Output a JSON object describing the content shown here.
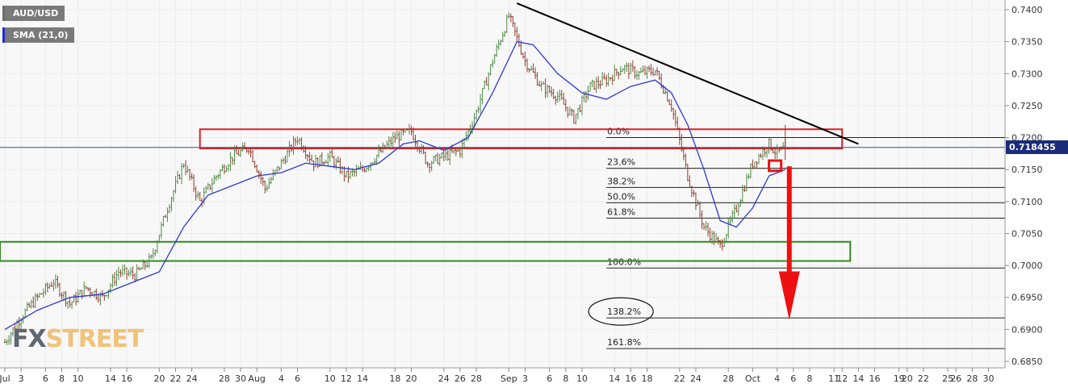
{
  "legend": {
    "symbol": "AUD/USD",
    "indicator": "SMA (21,0)"
  },
  "watermark": {
    "fx": "FX",
    "street": "STREET"
  },
  "current_price": "0.718455",
  "colors": {
    "candle": "#8f3f30",
    "candle_up": "#4f8a46",
    "sma": "#2a38d6",
    "trendline": "#000000",
    "resistance_zone": "#e02020",
    "support_zone": "#2f8a1f",
    "arrow": "#ee1010",
    "fib_lines": "#222222",
    "price_tag": "#1a2c7a",
    "background": "#f8f8f8"
  },
  "chart_data": {
    "type": "candlestick",
    "title": "",
    "y_axis": {
      "position": "right",
      "range": [
        0.684,
        0.742
      ],
      "ticks": [
        "0.7400",
        "0.7350",
        "0.7300",
        "0.7250",
        "0.7200",
        "0.7150",
        "0.7100",
        "0.7050",
        "0.7000",
        "0.6950",
        "0.6900",
        "0.6850"
      ]
    },
    "x_axis": {
      "ticks": [
        {
          "label": "Jul",
          "day": 0
        },
        {
          "label": "3",
          "day": 2
        },
        {
          "label": "6",
          "day": 5
        },
        {
          "label": "8",
          "day": 7
        },
        {
          "label": "10",
          "day": 9
        },
        {
          "label": "14",
          "day": 13
        },
        {
          "label": "16",
          "day": 15
        },
        {
          "label": "20",
          "day": 19
        },
        {
          "label": "22",
          "day": 21
        },
        {
          "label": "24",
          "day": 23
        },
        {
          "label": "28",
          "day": 27
        },
        {
          "label": "30",
          "day": 29
        },
        {
          "label": "Aug",
          "day": 31
        },
        {
          "label": "4",
          "day": 34
        },
        {
          "label": "6",
          "day": 36
        },
        {
          "label": "10",
          "day": 40
        },
        {
          "label": "12",
          "day": 42
        },
        {
          "label": "14",
          "day": 44
        },
        {
          "label": "18",
          "day": 48
        },
        {
          "label": "20",
          "day": 50
        },
        {
          "label": "24",
          "day": 54
        },
        {
          "label": "26",
          "day": 56
        },
        {
          "label": "28",
          "day": 58
        },
        {
          "label": "Sep",
          "day": 62
        },
        {
          "label": "3",
          "day": 64
        },
        {
          "label": "6",
          "day": 67
        },
        {
          "label": "8",
          "day": 69
        },
        {
          "label": "10",
          "day": 71
        },
        {
          "label": "14",
          "day": 75
        },
        {
          "label": "16",
          "day": 77
        },
        {
          "label": "18",
          "day": 79
        },
        {
          "label": "22",
          "day": 83
        },
        {
          "label": "24",
          "day": 85
        },
        {
          "label": "28",
          "day": 89
        },
        {
          "label": "Oct",
          "day": 92
        },
        {
          "label": "4",
          "day": 95
        },
        {
          "label": "6",
          "day": 97
        },
        {
          "label": "8",
          "day": 99
        },
        {
          "label": "11",
          "day": 102
        },
        {
          "label": "12",
          "day": 103
        },
        {
          "label": "14",
          "day": 105
        },
        {
          "label": "16",
          "day": 107
        },
        {
          "label": "19",
          "day": 110
        },
        {
          "label": "20",
          "day": 111
        },
        {
          "label": "22",
          "day": 113
        },
        {
          "label": "25",
          "day": 116
        },
        {
          "label": "26",
          "day": 117
        },
        {
          "label": "28",
          "day": 119
        },
        {
          "label": "30",
          "day": 121
        }
      ]
    },
    "price_path": [
      [
        0,
        0.688
      ],
      [
        2,
        0.692
      ],
      [
        4,
        0.695
      ],
      [
        6,
        0.6975
      ],
      [
        8,
        0.694
      ],
      [
        10,
        0.6965
      ],
      [
        12,
        0.695
      ],
      [
        14,
        0.699
      ],
      [
        16,
        0.6985
      ],
      [
        18,
        0.701
      ],
      [
        20,
        0.709
      ],
      [
        22,
        0.716
      ],
      [
        24,
        0.71
      ],
      [
        26,
        0.714
      ],
      [
        28,
        0.717
      ],
      [
        30,
        0.7185
      ],
      [
        32,
        0.712
      ],
      [
        34,
        0.716
      ],
      [
        36,
        0.72
      ],
      [
        38,
        0.716
      ],
      [
        40,
        0.717
      ],
      [
        42,
        0.714
      ],
      [
        44,
        0.715
      ],
      [
        46,
        0.7175
      ],
      [
        48,
        0.72
      ],
      [
        50,
        0.721
      ],
      [
        52,
        0.716
      ],
      [
        54,
        0.717
      ],
      [
        56,
        0.718
      ],
      [
        58,
        0.724
      ],
      [
        60,
        0.732
      ],
      [
        62,
        0.739
      ],
      [
        64,
        0.732
      ],
      [
        66,
        0.728
      ],
      [
        68,
        0.7265
      ],
      [
        70,
        0.723
      ],
      [
        72,
        0.728
      ],
      [
        74,
        0.729
      ],
      [
        76,
        0.731
      ],
      [
        78,
        0.73
      ],
      [
        80,
        0.7305
      ],
      [
        82,
        0.725
      ],
      [
        84,
        0.714
      ],
      [
        86,
        0.706
      ],
      [
        88,
        0.703
      ],
      [
        90,
        0.709
      ],
      [
        92,
        0.716
      ],
      [
        94,
        0.719
      ],
      [
        95,
        0.7175
      ],
      [
        96,
        0.7185
      ]
    ],
    "sma_path": [
      [
        0,
        0.69
      ],
      [
        4,
        0.693
      ],
      [
        8,
        0.695
      ],
      [
        12,
        0.6955
      ],
      [
        16,
        0.6975
      ],
      [
        19,
        0.699
      ],
      [
        22,
        0.706
      ],
      [
        25,
        0.711
      ],
      [
        28,
        0.7125
      ],
      [
        31,
        0.714
      ],
      [
        34,
        0.7145
      ],
      [
        37,
        0.716
      ],
      [
        40,
        0.7155
      ],
      [
        43,
        0.715
      ],
      [
        46,
        0.716
      ],
      [
        49,
        0.719
      ],
      [
        51,
        0.7195
      ],
      [
        54,
        0.718
      ],
      [
        57,
        0.72
      ],
      [
        60,
        0.727
      ],
      [
        63,
        0.735
      ],
      [
        65,
        0.7345
      ],
      [
        68,
        0.73
      ],
      [
        71,
        0.727
      ],
      [
        74,
        0.726
      ],
      [
        77,
        0.728
      ],
      [
        80,
        0.729
      ],
      [
        82,
        0.727
      ],
      [
        84,
        0.722
      ],
      [
        86,
        0.715
      ],
      [
        88,
        0.707
      ],
      [
        90,
        0.706
      ],
      [
        92,
        0.709
      ],
      [
        94,
        0.714
      ],
      [
        96,
        0.715
      ]
    ],
    "annotations": {
      "resistance_zone": {
        "x_from": 24,
        "x_to": 103,
        "y_from": 0.7183,
        "y_to": 0.7213
      },
      "support_zone": {
        "x_from": -1,
        "x_to": 104,
        "y_from": 0.7007,
        "y_to": 0.7037
      },
      "trendline": {
        "from": [
          63,
          0.741
        ],
        "to": [
          105,
          0.719
        ]
      },
      "fibonacci": [
        {
          "label": "0.0%",
          "value": 0.72
        },
        {
          "label": "23.6%",
          "value": 0.7152
        },
        {
          "label": "38.2%",
          "value": 0.7122
        },
        {
          "label": "50.0%",
          "value": 0.7098
        },
        {
          "label": "61.8%",
          "value": 0.7074
        },
        {
          "label": "100.0%",
          "value": 0.6996
        },
        {
          "label": "138.2%",
          "value": 0.6918
        },
        {
          "label": "161.8%",
          "value": 0.687
        }
      ],
      "fib_x_from": 74,
      "circled_level": "138.2%",
      "small_box": {
        "x_from": 94,
        "x_to": 95.5,
        "y_from": 0.7148,
        "y_to": 0.7164
      },
      "arrow": {
        "x": 96.5,
        "from": 0.7155,
        "to": 0.6915
      }
    }
  }
}
